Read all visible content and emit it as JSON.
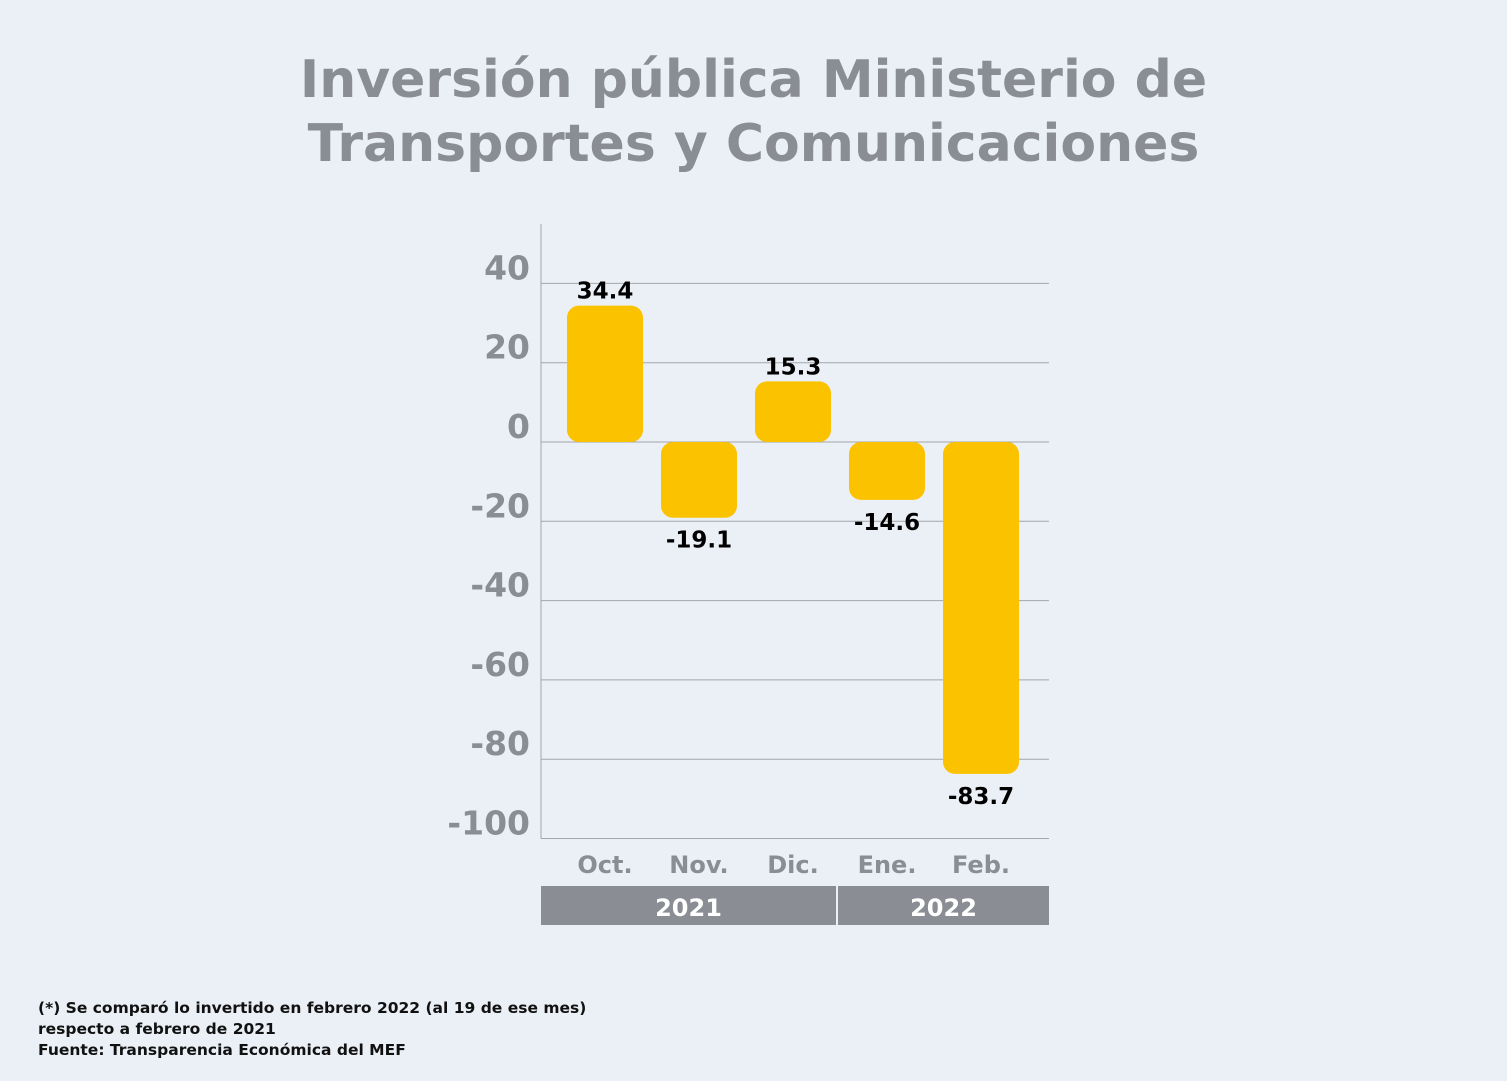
{
  "title_lines": [
    "Inversión pública Ministerio de",
    "Transportes y Comunicaciones"
  ],
  "chart_data": {
    "type": "bar",
    "categories": [
      "Oct.",
      "Nov.",
      "Dic.",
      "Ene.",
      "Feb."
    ],
    "values": [
      34.4,
      -19.1,
      15.3,
      -14.6,
      -83.7
    ],
    "value_labels": [
      "34.4",
      "-19.1",
      "15.3",
      "-14.6",
      "-83.7"
    ],
    "yticks": [
      40,
      20,
      0,
      -20,
      -40,
      -60,
      -80,
      -100
    ],
    "ylim": [
      -100,
      55
    ],
    "grid": true,
    "year_groups": [
      {
        "label": "2021",
        "categories": [
          "Oct.",
          "Nov.",
          "Dic."
        ]
      },
      {
        "label": "2022",
        "categories": [
          "Ene.",
          "Feb."
        ]
      }
    ],
    "colors": {
      "bar": "#fbc200",
      "axis_text": "#8a8d94",
      "grid": "#a3a6ab",
      "band": "#8a8d94",
      "value_text": "#000000"
    }
  },
  "notes": [
    "(*) Se comparó lo invertido en febrero 2022 (al 19 de ese mes)",
    "respecto a febrero de 2021",
    "Fuente: Transparencia Económica del MEF"
  ]
}
